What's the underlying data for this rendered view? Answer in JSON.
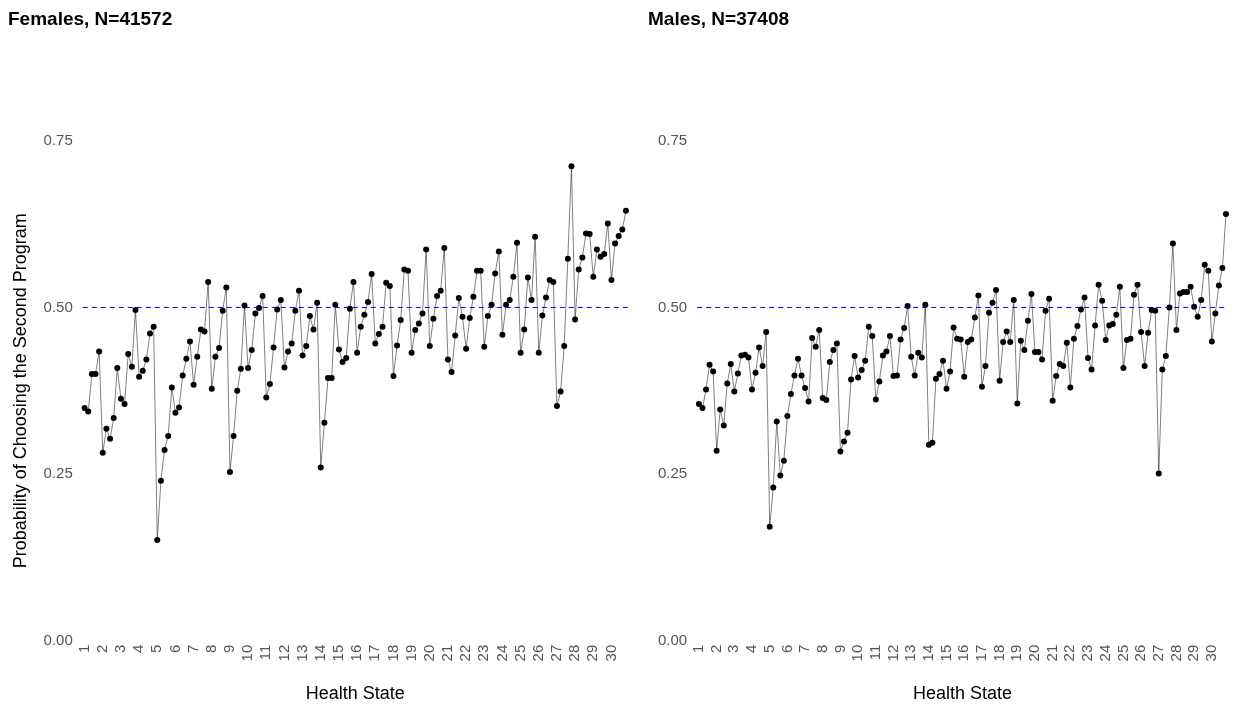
{
  "chart_data": [
    {
      "type": "line",
      "title": "Females, N=41572",
      "xlabel": "Health State",
      "ylabel": "Probability of Choosing the Second Program",
      "categories": [
        "1",
        null,
        null,
        null,
        null,
        "2",
        null,
        null,
        null,
        null,
        "3",
        null,
        null,
        null,
        null,
        "4",
        null,
        null,
        null,
        null,
        "5",
        null,
        null,
        null,
        null,
        "6",
        null,
        null,
        null,
        null,
        "7",
        null,
        null,
        null,
        null,
        "8",
        null,
        null,
        null,
        null,
        "9",
        null,
        null,
        null,
        null,
        "10",
        null,
        null,
        null,
        null,
        "11",
        null,
        null,
        null,
        null,
        "12",
        null,
        null,
        null,
        null,
        "13",
        null,
        null,
        null,
        null,
        "14",
        null,
        null,
        null,
        null,
        "15",
        null,
        null,
        null,
        null,
        "16",
        null,
        null,
        null,
        null,
        "17",
        null,
        null,
        null,
        null,
        "18",
        null,
        null,
        null,
        null,
        "19",
        null,
        null,
        null,
        null,
        "20",
        null,
        null,
        null,
        null,
        "21",
        null,
        null,
        null,
        null,
        "22",
        null,
        null,
        null,
        null,
        "23",
        null,
        null,
        null,
        null,
        "24",
        null,
        null,
        null,
        null,
        "25",
        null,
        null,
        null,
        null,
        "26",
        null,
        null,
        null,
        null,
        "27",
        null,
        null,
        null,
        null,
        "28",
        null,
        null,
        null,
        null,
        "29",
        null,
        null,
        null,
        null,
        "30",
        null,
        null,
        null,
        null
      ],
      "series": [
        {
          "color": "#000000",
          "values": [
            0.349,
            0.344,
            0.4,
            0.4,
            0.434,
            0.282,
            0.318,
            0.303,
            0.334,
            0.409,
            0.363,
            0.355,
            0.43,
            0.411,
            0.496,
            0.396,
            0.405,
            0.422,
            0.461,
            0.471,
            0.151,
            0.24,
            0.286,
            0.307,
            0.38,
            0.342,
            0.35,
            0.398,
            0.423,
            0.449,
            0.384,
            0.426,
            0.467,
            0.464,
            0.538,
            0.378,
            0.426,
            0.439,
            0.495,
            0.53,
            0.253,
            0.307,
            0.375,
            0.408,
            0.503,
            0.409,
            0.436,
            0.491,
            0.499,
            0.517,
            0.365,
            0.385,
            0.44,
            0.497,
            0.511,
            0.41,
            0.434,
            0.446,
            0.495,
            0.525,
            0.428,
            0.442,
            0.487,
            0.467,
            0.507,
            0.26,
            0.327,
            0.394,
            0.394,
            0.504,
            0.437,
            0.418,
            0.424,
            0.498,
            0.538,
            0.432,
            0.471,
            0.489,
            0.508,
            0.55,
            0.446,
            0.46,
            0.471,
            0.537,
            0.532,
            0.397,
            0.443,
            0.481,
            0.557,
            0.555,
            0.432,
            0.466,
            0.476,
            0.491,
            0.587,
            0.442,
            0.483,
            0.517,
            0.525,
            0.589,
            0.422,
            0.403,
            0.458,
            0.514,
            0.486,
            0.438,
            0.484,
            0.516,
            0.555,
            0.555,
            0.441,
            0.487,
            0.504,
            0.551,
            0.584,
            0.459,
            0.504,
            0.511,
            0.546,
            0.597,
            0.432,
            0.467,
            0.545,
            0.511,
            0.606,
            0.432,
            0.488,
            0.515,
            0.541,
            0.538,
            0.352,
            0.374,
            0.442,
            0.573,
            0.712,
            0.482,
            0.557,
            0.575,
            0.611,
            0.61,
            0.546,
            0.587,
            0.576,
            0.58,
            0.626,
            0.541,
            0.596,
            0.607,
            0.617,
            0.645
          ]
        }
      ],
      "ylim": [
        0,
        0.75
      ],
      "yticks": [
        {
          "value": 0,
          "label": "0.00"
        },
        {
          "value": 0.25,
          "label": "0.25"
        },
        {
          "value": 0.5,
          "label": "0.50"
        },
        {
          "value": 0.75,
          "label": "0.75"
        }
      ],
      "ref_lines": [
        {
          "axis": "y",
          "value": 0.5,
          "color": "#0000ff",
          "line_style": "dashed"
        }
      ],
      "marker": "circle",
      "grid": false,
      "legend": false
    },
    {
      "type": "line",
      "title": "Males, N=37408",
      "xlabel": "Health State",
      "categories": [
        "1",
        null,
        null,
        null,
        null,
        "2",
        null,
        null,
        null,
        null,
        "3",
        null,
        null,
        null,
        null,
        "4",
        null,
        null,
        null,
        null,
        "5",
        null,
        null,
        null,
        null,
        "6",
        null,
        null,
        null,
        null,
        "7",
        null,
        null,
        null,
        null,
        "8",
        null,
        null,
        null,
        null,
        "9",
        null,
        null,
        null,
        null,
        "10",
        null,
        null,
        null,
        null,
        "11",
        null,
        null,
        null,
        null,
        "12",
        null,
        null,
        null,
        null,
        "13",
        null,
        null,
        null,
        null,
        "14",
        null,
        null,
        null,
        null,
        "15",
        null,
        null,
        null,
        null,
        "16",
        null,
        null,
        null,
        null,
        "17",
        null,
        null,
        null,
        null,
        "18",
        null,
        null,
        null,
        null,
        "19",
        null,
        null,
        null,
        null,
        "20",
        null,
        null,
        null,
        null,
        "21",
        null,
        null,
        null,
        null,
        "22",
        null,
        null,
        null,
        null,
        "23",
        null,
        null,
        null,
        null,
        "24",
        null,
        null,
        null,
        null,
        "25",
        null,
        null,
        null,
        null,
        "26",
        null,
        null,
        null,
        null,
        "27",
        null,
        null,
        null,
        null,
        "28",
        null,
        null,
        null,
        null,
        "29",
        null,
        null,
        null,
        null,
        "30",
        null,
        null,
        null,
        null
      ],
      "series": [
        {
          "color": "#000000",
          "values": [
            0.355,
            0.349,
            0.377,
            0.414,
            0.404,
            0.285,
            0.347,
            0.323,
            0.386,
            0.415,
            0.374,
            0.401,
            0.428,
            0.429,
            0.425,
            0.377,
            0.402,
            0.44,
            0.412,
            0.463,
            0.171,
            0.23,
            0.329,
            0.248,
            0.27,
            0.337,
            0.37,
            0.398,
            0.423,
            0.398,
            0.379,
            0.359,
            0.454,
            0.441,
            0.466,
            0.364,
            0.361,
            0.418,
            0.436,
            0.446,
            0.284,
            0.299,
            0.312,
            0.392,
            0.427,
            0.395,
            0.406,
            0.42,
            0.471,
            0.457,
            0.362,
            0.389,
            0.428,
            0.434,
            0.457,
            0.397,
            0.398,
            0.452,
            0.469,
            0.502,
            0.426,
            0.398,
            0.432,
            0.425,
            0.504,
            0.294,
            0.297,
            0.393,
            0.4,
            0.42,
            0.378,
            0.404,
            0.47,
            0.453,
            0.452,
            0.396,
            0.448,
            0.452,
            0.485,
            0.518,
            0.381,
            0.412,
            0.492,
            0.507,
            0.526,
            0.39,
            0.448,
            0.464,
            0.448,
            0.511,
            0.356,
            0.45,
            0.436,
            0.48,
            0.52,
            0.433,
            0.433,
            0.422,
            0.495,
            0.513,
            0.36,
            0.397,
            0.415,
            0.412,
            0.447,
            0.38,
            0.453,
            0.472,
            0.497,
            0.515,
            0.424,
            0.407,
            0.473,
            0.534,
            0.51,
            0.451,
            0.473,
            0.475,
            0.489,
            0.531,
            0.409,
            0.451,
            0.453,
            0.519,
            0.534,
            0.463,
            0.412,
            0.462,
            0.496,
            0.495,
            0.251,
            0.407,
            0.427,
            0.5,
            0.596,
            0.466,
            0.521,
            0.523,
            0.523,
            0.531,
            0.501,
            0.486,
            0.511,
            0.564,
            0.555,
            0.449,
            0.491,
            0.533,
            0.559,
            0.64
          ]
        }
      ],
      "ylim": [
        0,
        0.75
      ],
      "yticks": [
        {
          "value": 0,
          "label": "0.00"
        },
        {
          "value": 0.25,
          "label": "0.25"
        },
        {
          "value": 0.5,
          "label": "0.50"
        },
        {
          "value": 0.75,
          "label": "0.75"
        }
      ],
      "ref_lines": [
        {
          "axis": "y",
          "value": 0.5,
          "color": "#0000ff",
          "line_style": "dashed"
        }
      ],
      "marker": "circle",
      "grid": false,
      "legend": false
    }
  ]
}
